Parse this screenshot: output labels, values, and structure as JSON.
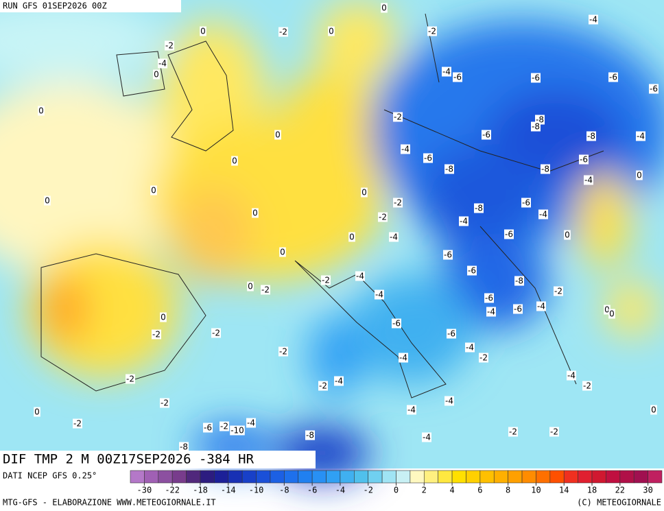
{
  "header": {
    "run": "RUN GFS 01SEP2026 00Z"
  },
  "map": {
    "title": "DIF TMP 2 M 00Z17SEP2026 -384 HR",
    "contour_labels": [
      0,
      -2,
      0,
      0,
      -2,
      -4,
      -2,
      -4,
      0,
      0,
      -4,
      -6,
      -6,
      -6,
      -6,
      -8,
      -8,
      -2,
      -6,
      -8,
      -4,
      0,
      -4,
      -6,
      -6,
      -8,
      -8,
      0,
      -4,
      0,
      0,
      0,
      0,
      -2,
      -6,
      -8,
      -4,
      0,
      -2,
      -4,
      -6,
      0,
      0,
      -4,
      0,
      -6,
      -6,
      -8,
      0,
      -2,
      -2,
      -4,
      -2,
      -4,
      -6,
      -4,
      -6,
      -4,
      0,
      0,
      0,
      -6,
      -2,
      -2,
      -6,
      -4,
      -2,
      -2,
      -4,
      -4,
      -2,
      -2,
      -4,
      -2,
      -2,
      -4,
      0,
      -4,
      0,
      -2,
      -6,
      -2,
      -4,
      -10,
      -8,
      -4,
      -2,
      -2,
      -8
    ]
  },
  "legend": {
    "source": "DATI NCEP GFS 0.25°",
    "ticks": [
      -30,
      -22,
      -18,
      -14,
      -10,
      -8,
      -6,
      -4,
      -2,
      0,
      2,
      4,
      6,
      8,
      10,
      14,
      18,
      22,
      30
    ],
    "colors": [
      "#b478c8",
      "#a060b4",
      "#8c50a0",
      "#783c8c",
      "#50287c",
      "#2c1c80",
      "#1c2098",
      "#1830b4",
      "#1840c8",
      "#1a50d8",
      "#1c60e4",
      "#1e70ec",
      "#2080f0",
      "#2890f4",
      "#30a0f4",
      "#40b0f0",
      "#50c0ec",
      "#70d0f0",
      "#a0e4f4",
      "#c8f0f4",
      "#fff8c0",
      "#fff080",
      "#ffe840",
      "#ffe000",
      "#ffd000",
      "#ffc000",
      "#ffb000",
      "#ffa000",
      "#ff8c00",
      "#ff7000",
      "#ff5000",
      "#f03020",
      "#e02030",
      "#d01830",
      "#c01040",
      "#b01048",
      "#a01050",
      "#c02060"
    ]
  },
  "footer": {
    "left": "MTG-GFS - ELABORAZIONE WWW.METEOGIORNALE.IT",
    "right": "(C) METEOGIORNALE"
  }
}
